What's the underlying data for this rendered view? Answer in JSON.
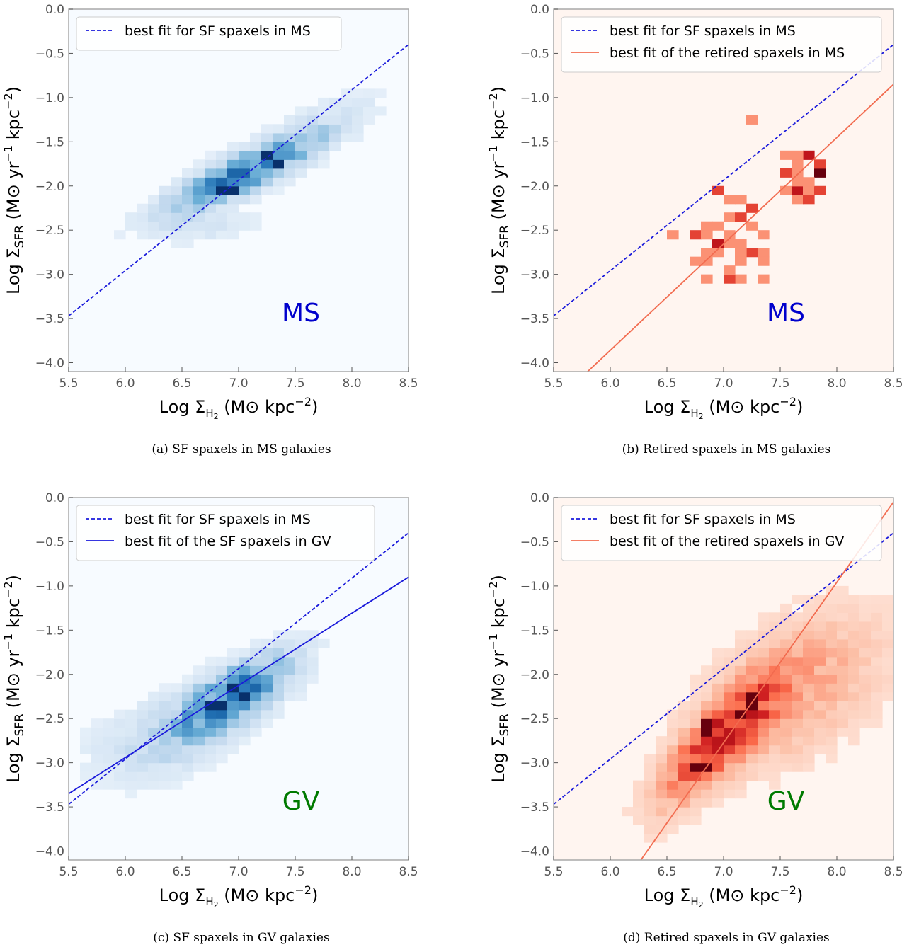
{
  "chart_data": [
    {
      "type": "heatmap",
      "panel": "a",
      "caption": "(a) SF spaxels in MS galaxies",
      "tag": "MS",
      "tag_color": "#0000cc",
      "colormap": "Blues",
      "xlabel": "Log Σ_H2 (M⊙ kpc^-2)",
      "ylabel": "Log Σ_SFR (M⊙ yr^-1 kpc^-2)",
      "xlim": [
        5.5,
        8.5
      ],
      "ylim": [
        -4.1,
        0.0
      ],
      "xticks": [
        "5.5",
        "6.0",
        "6.5",
        "7.0",
        "7.5",
        "8.0",
        "8.5"
      ],
      "yticks": [
        "0.0",
        "−0.5",
        "−1.0",
        "−1.5",
        "−2.0",
        "−2.5",
        "−3.0",
        "−3.5",
        "−4.0"
      ],
      "lines": [
        {
          "name": "best fit for SF spaxels in MS",
          "style": "dashed",
          "color": "#1a1adb",
          "x": [
            5.5,
            8.5
          ],
          "y": [
            -3.47,
            -0.4
          ]
        }
      ],
      "density_clusters": [
        {
          "x": 7.05,
          "y": -1.85,
          "sx": 0.42,
          "sy": 0.28,
          "r": 0.85,
          "w": 1.0
        },
        {
          "x": 6.7,
          "y": -2.45,
          "sx": 0.3,
          "sy": 0.12,
          "r": 0.3,
          "w": 0.15
        },
        {
          "x": 7.8,
          "y": -1.25,
          "sx": 0.3,
          "sy": 0.22,
          "r": 0.6,
          "w": 0.12
        }
      ],
      "peaks": [
        [
          6.9,
          -2.05
        ],
        [
          7.25,
          -1.65
        ],
        [
          7.35,
          -1.75
        ]
      ]
    },
    {
      "type": "heatmap",
      "panel": "b",
      "caption": "(b) Retired spaxels in MS galaxies",
      "tag": "MS",
      "tag_color": "#0000cc",
      "colormap": "Reds",
      "xlabel": "Log Σ_H2 (M⊙ kpc^-2)",
      "ylabel": "Log Σ_SFR (M⊙ yr^-1 kpc^-2)",
      "xlim": [
        5.5,
        8.5
      ],
      "ylim": [
        -4.1,
        0.0
      ],
      "xticks": [
        "5.5",
        "6.0",
        "6.5",
        "7.0",
        "7.5",
        "8.0",
        "8.5"
      ],
      "yticks": [
        "0.0",
        "−0.5",
        "−1.0",
        "−1.5",
        "−2.0",
        "−2.5",
        "−3.0",
        "−3.5",
        "−4.0"
      ],
      "lines": [
        {
          "name": "best fit for SF spaxels in MS",
          "style": "dashed",
          "color": "#1a1adb",
          "x": [
            5.5,
            8.5
          ],
          "y": [
            -3.47,
            -0.4
          ]
        },
        {
          "name": "best fit of the retired spaxels in MS",
          "style": "solid",
          "color": "#f26b4f",
          "x": [
            5.8,
            8.5
          ],
          "y": [
            -4.1,
            -0.85
          ]
        }
      ],
      "sparse_clusters": [
        {
          "x": 7.05,
          "y": -2.6,
          "sx": 0.22,
          "sy": 0.3,
          "n": 32
        },
        {
          "x": 7.7,
          "y": -1.9,
          "sx": 0.12,
          "sy": 0.2,
          "n": 28
        }
      ],
      "outliers": [
        [
          7.2,
          -1.2
        ],
        [
          6.55,
          -2.5
        ],
        [
          7.35,
          -3.05
        ]
      ],
      "peaks": [
        [
          7.85,
          -1.8
        ],
        [
          7.8,
          -1.6
        ],
        [
          7.65,
          -2.05
        ],
        [
          6.95,
          -2.6
        ]
      ]
    },
    {
      "type": "heatmap",
      "panel": "c",
      "caption": "(c) SF spaxels in GV galaxies",
      "tag": "GV",
      "tag_color": "#007a00",
      "colormap": "Blues",
      "xlabel": "Log Σ_H2 (M⊙ kpc^-2)",
      "ylabel": "Log Σ_SFR (M⊙ yr^-1 kpc^-2)",
      "xlim": [
        5.5,
        8.5
      ],
      "ylim": [
        -4.1,
        0.0
      ],
      "xticks": [
        "5.5",
        "6.0",
        "6.5",
        "7.0",
        "7.5",
        "8.0",
        "8.5"
      ],
      "yticks": [
        "0.0",
        "−0.5",
        "−1.0",
        "−1.5",
        "−2.0",
        "−2.5",
        "−3.0",
        "−3.5",
        "−4.0"
      ],
      "lines": [
        {
          "name": "best fit for SF spaxels in MS",
          "style": "dashed",
          "color": "#1a1adb",
          "x": [
            5.5,
            8.5
          ],
          "y": [
            -3.47,
            -0.4
          ]
        },
        {
          "name": "best fit of the SF spaxels in GV",
          "style": "solid",
          "color": "#1a1adb",
          "x": [
            5.5,
            8.5
          ],
          "y": [
            -3.35,
            -0.9
          ]
        }
      ],
      "density_clusters": [
        {
          "x": 6.95,
          "y": -2.25,
          "sx": 0.33,
          "sy": 0.3,
          "r": 0.7,
          "w": 1.0
        },
        {
          "x": 6.3,
          "y": -2.75,
          "sx": 0.38,
          "sy": 0.3,
          "r": 0.3,
          "w": 0.22
        }
      ],
      "peaks": [
        [
          6.95,
          -2.15
        ],
        [
          6.8,
          -2.35
        ],
        [
          7.05,
          -2.25
        ]
      ]
    },
    {
      "type": "heatmap",
      "panel": "d",
      "caption": "(d) Retired spaxels in GV galaxies",
      "tag": "GV",
      "tag_color": "#007a00",
      "colormap": "Reds",
      "xlabel": "Log Σ_H2 (M⊙ kpc^-2)",
      "ylabel": "Log Σ_SFR (M⊙ yr^-1 kpc^-2)",
      "xlim": [
        5.5,
        8.5
      ],
      "ylim": [
        -4.1,
        0.0
      ],
      "xticks": [
        "5.5",
        "6.0",
        "6.5",
        "7.0",
        "7.5",
        "8.0",
        "8.5"
      ],
      "yticks": [
        "0.0",
        "−0.5",
        "−1.0",
        "−1.5",
        "−2.0",
        "−2.5",
        "−3.0",
        "−3.5",
        "−4.0"
      ],
      "lines": [
        {
          "name": "best fit for SF spaxels in MS",
          "style": "dashed",
          "color": "#1a1adb",
          "x": [
            5.5,
            8.5
          ],
          "y": [
            -3.47,
            -0.4
          ]
        },
        {
          "name": "best fit of the retired spaxels in GV",
          "style": "solid",
          "color": "#f26b4f",
          "x": [
            6.27,
            8.5
          ],
          "y": [
            -4.1,
            -0.05
          ]
        }
      ],
      "density_clusters": [
        {
          "x": 7.0,
          "y": -2.7,
          "sx": 0.33,
          "sy": 0.45,
          "r": 0.82,
          "w": 1.0
        },
        {
          "x": 7.6,
          "y": -2.2,
          "sx": 0.5,
          "sy": 0.55,
          "r": 0.5,
          "w": 0.35
        }
      ],
      "peaks": [
        [
          7.15,
          -2.45
        ],
        [
          6.85,
          -2.6
        ],
        [
          6.8,
          -3.05
        ],
        [
          7.25,
          -2.3
        ]
      ]
    }
  ]
}
